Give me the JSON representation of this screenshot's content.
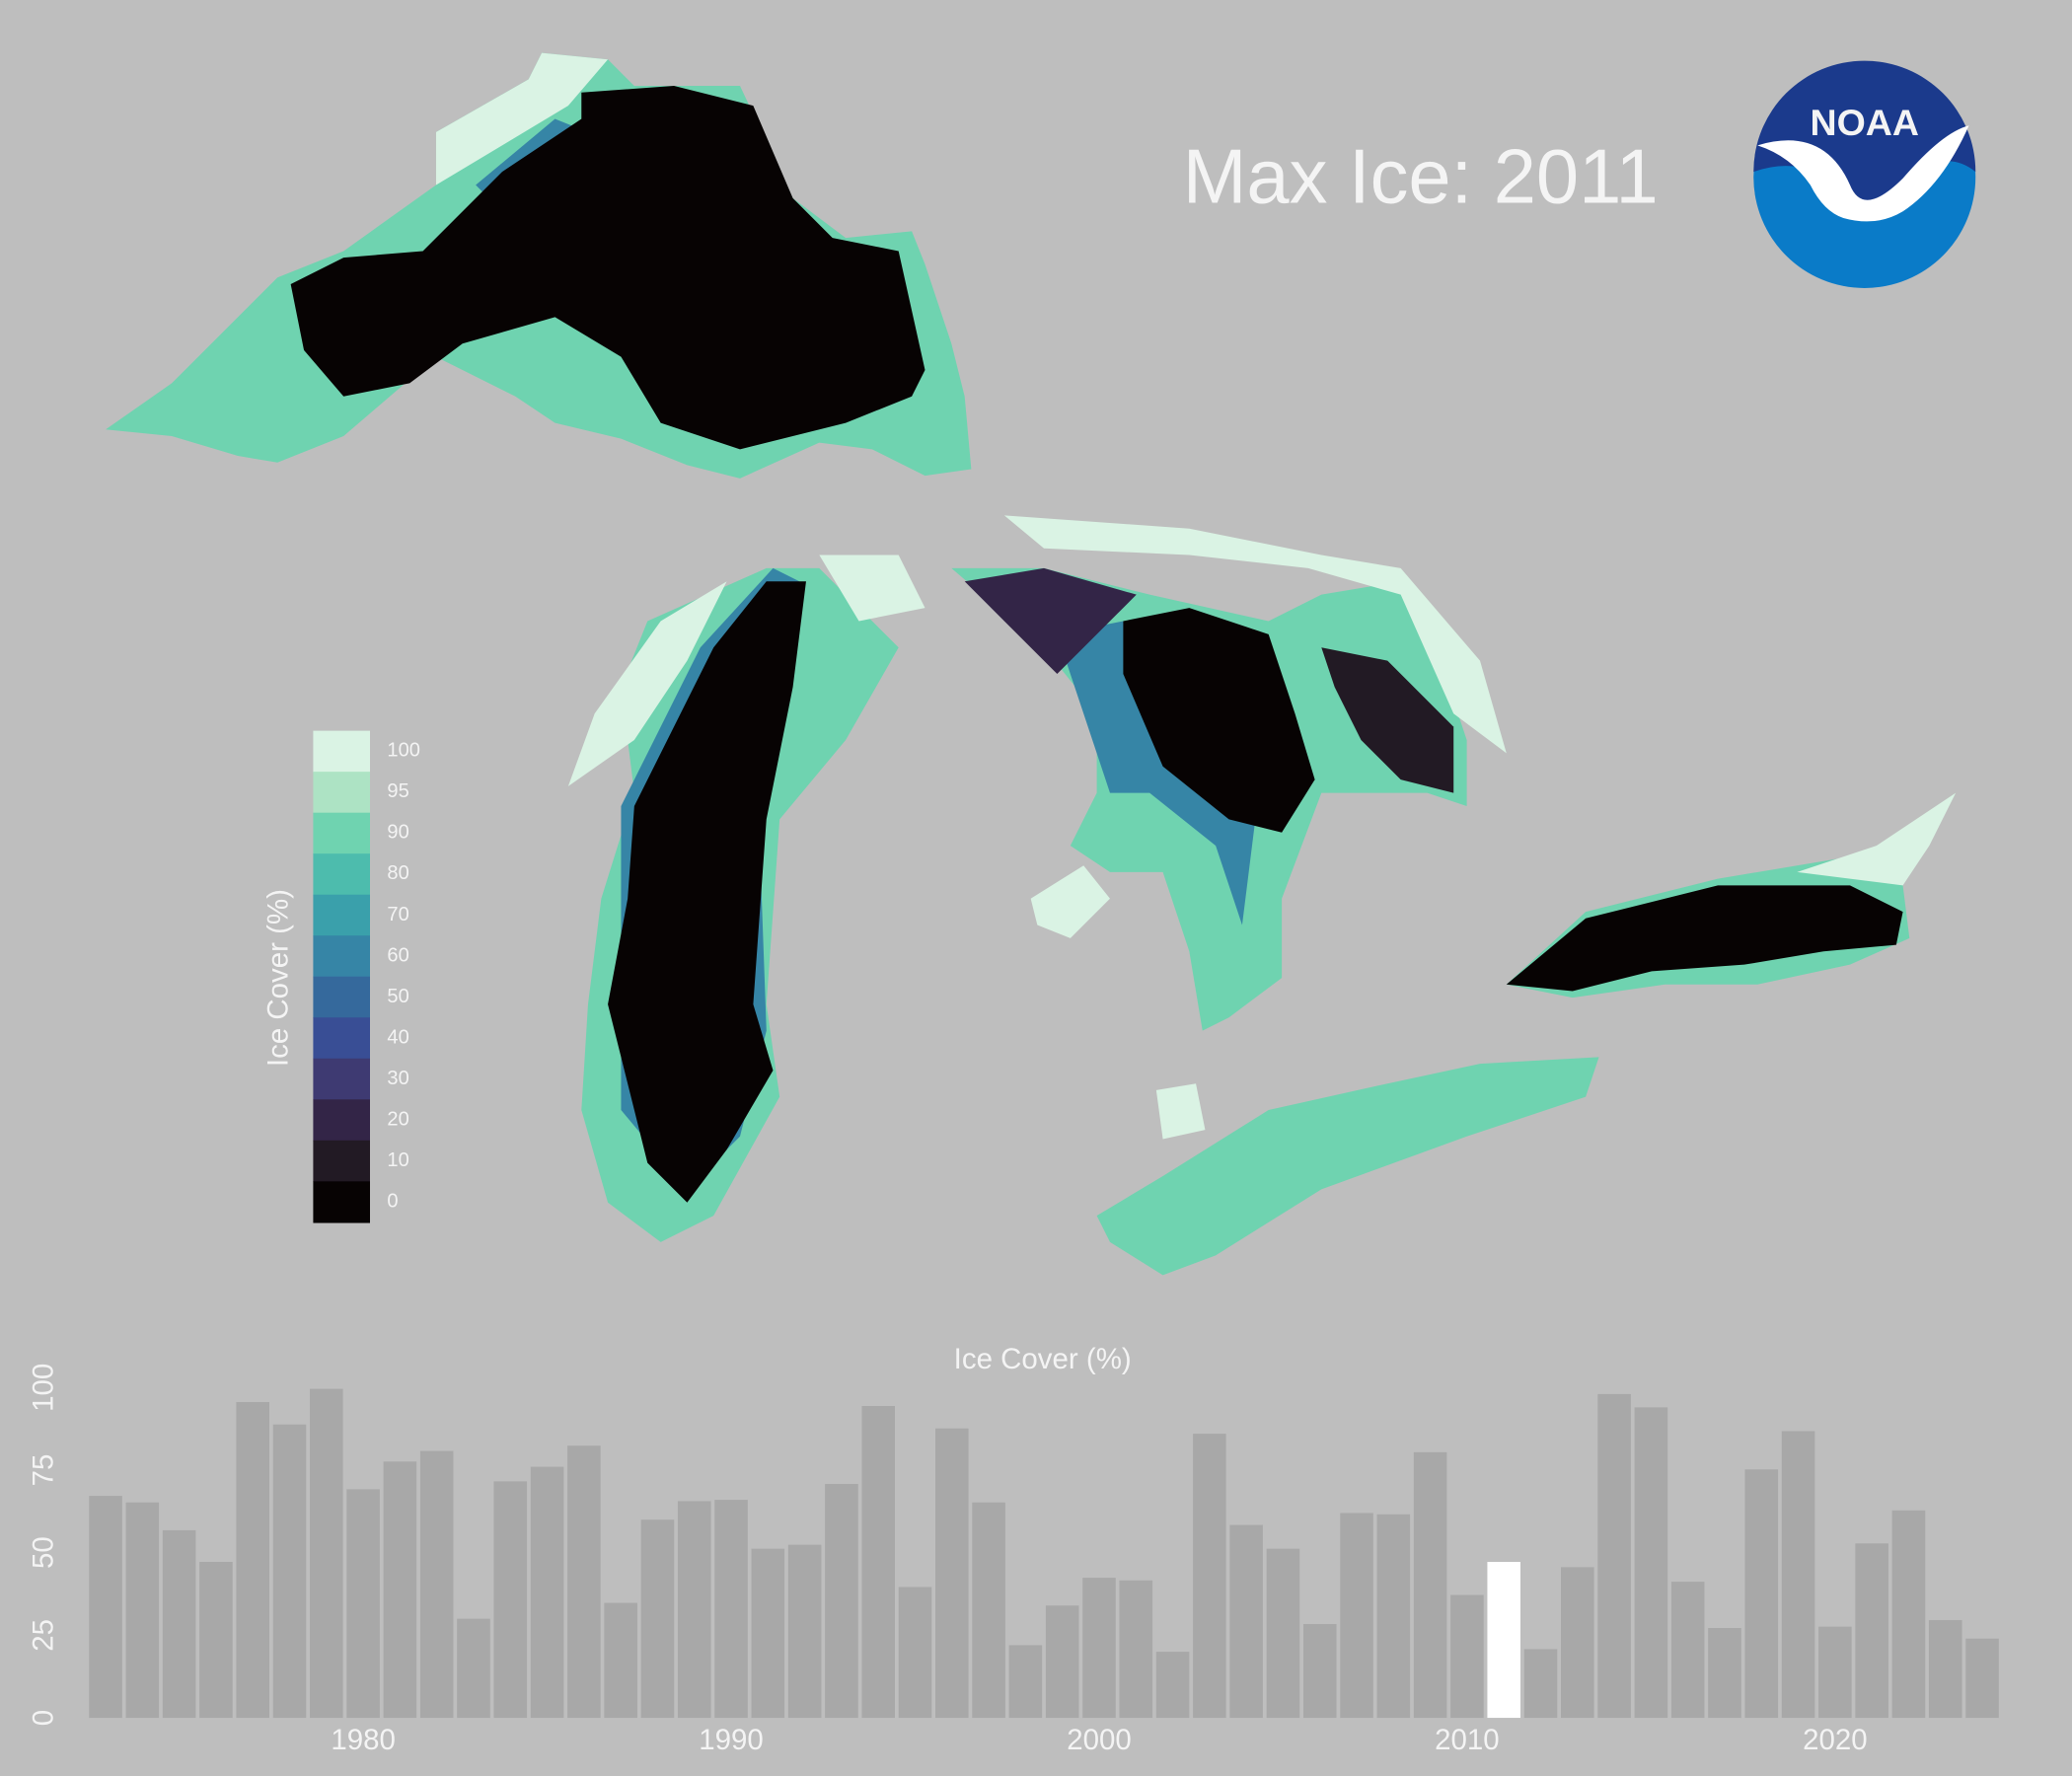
{
  "logo_text": "NOAA",
  "chart_data": {
    "type": "bar",
    "title": "Max Ice: 2011",
    "y_label": "Ice Cover (%)",
    "x": [
      1973,
      1974,
      1975,
      1976,
      1977,
      1978,
      1979,
      1980,
      1981,
      1982,
      1983,
      1984,
      1985,
      1986,
      1987,
      1988,
      1989,
      1990,
      1991,
      1992,
      1993,
      1994,
      1995,
      1996,
      1997,
      1998,
      1999,
      2000,
      2001,
      2002,
      2003,
      2004,
      2005,
      2006,
      2007,
      2008,
      2009,
      2010,
      2011,
      2012,
      2013,
      2014,
      2015,
      2016,
      2017,
      2018,
      2019,
      2020,
      2021,
      2022,
      2023,
      2024
    ],
    "values": [
      67.2,
      65.2,
      56.8,
      47.2,
      95.6,
      88.8,
      99.6,
      69.2,
      77.6,
      80.8,
      30,
      71.6,
      76,
      82.4,
      34.8,
      60,
      65.6,
      66,
      51.2,
      52.4,
      70.8,
      94.4,
      39.6,
      87.6,
      65.2,
      22,
      34,
      42.4,
      41.6,
      20,
      86,
      58.4,
      51.2,
      28.4,
      62,
      61.6,
      80.4,
      37.2,
      47.2,
      20.8,
      45.6,
      98,
      94,
      41.2,
      27.2,
      75.2,
      86.8,
      27.6,
      52.8,
      62.8,
      29.6,
      24
    ],
    "color": "#a8a8a8",
    "highlight": 2011,
    "highlight_color": "#ffffff",
    "xlim": [
      1972.5,
      2024.5
    ],
    "xticks": [
      1980,
      1990,
      2000,
      2010,
      2020
    ],
    "ylim": [
      0,
      100
    ],
    "yticks": [
      0,
      25,
      50,
      75,
      100
    ],
    "map_legend": {
      "title": "Ice Cover (%)",
      "values": [
        100,
        95,
        90,
        80,
        70,
        60,
        50,
        40,
        30,
        20,
        10,
        0
      ],
      "colors": [
        "#daf3e4",
        "#ade3c4",
        "#6fd3b0",
        "#4dbcad",
        "#3aa0ab",
        "#3685a6",
        "#35699c",
        "#394e95",
        "#3e3a72",
        "#332547",
        "#221a24",
        "#070303"
      ]
    }
  }
}
